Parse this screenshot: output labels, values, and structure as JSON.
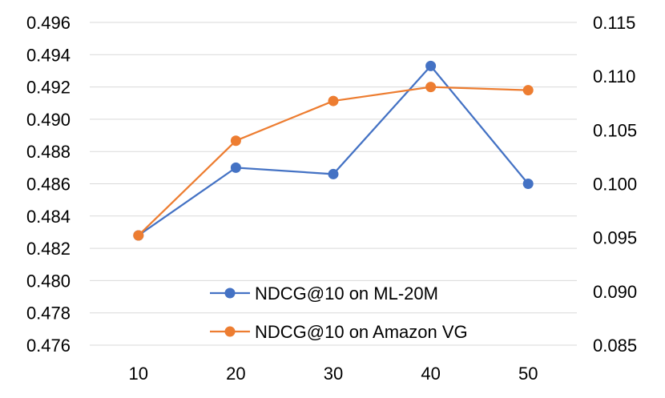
{
  "chart_data": {
    "type": "line",
    "title": "",
    "xlabel": "",
    "ylabel": "",
    "categories": [
      "10",
      "20",
      "30",
      "40",
      "50"
    ],
    "y_left": {
      "ylim": [
        0.476,
        0.496
      ],
      "ticks": [
        "0.476",
        "0.478",
        "0.480",
        "0.482",
        "0.484",
        "0.486",
        "0.488",
        "0.490",
        "0.492",
        "0.494",
        "0.496"
      ]
    },
    "y_right": {
      "ylim": [
        0.085,
        0.115
      ],
      "ticks": [
        "0.085",
        "0.090",
        "0.095",
        "0.100",
        "0.105",
        "0.110",
        "0.115"
      ]
    },
    "grid": true,
    "legend_position": "bottom-center",
    "series": [
      {
        "name": "NDCG@10 on ML-20M",
        "axis": "left",
        "color": "#4472C4",
        "values": [
          0.4828,
          0.487,
          0.4866,
          0.4933,
          0.486
        ]
      },
      {
        "name": "NDCG@10 on Amazon VG",
        "axis": "right",
        "color": "#ED7D31",
        "values": [
          0.0952,
          0.104,
          0.1077,
          0.109,
          0.1087
        ]
      }
    ]
  }
}
